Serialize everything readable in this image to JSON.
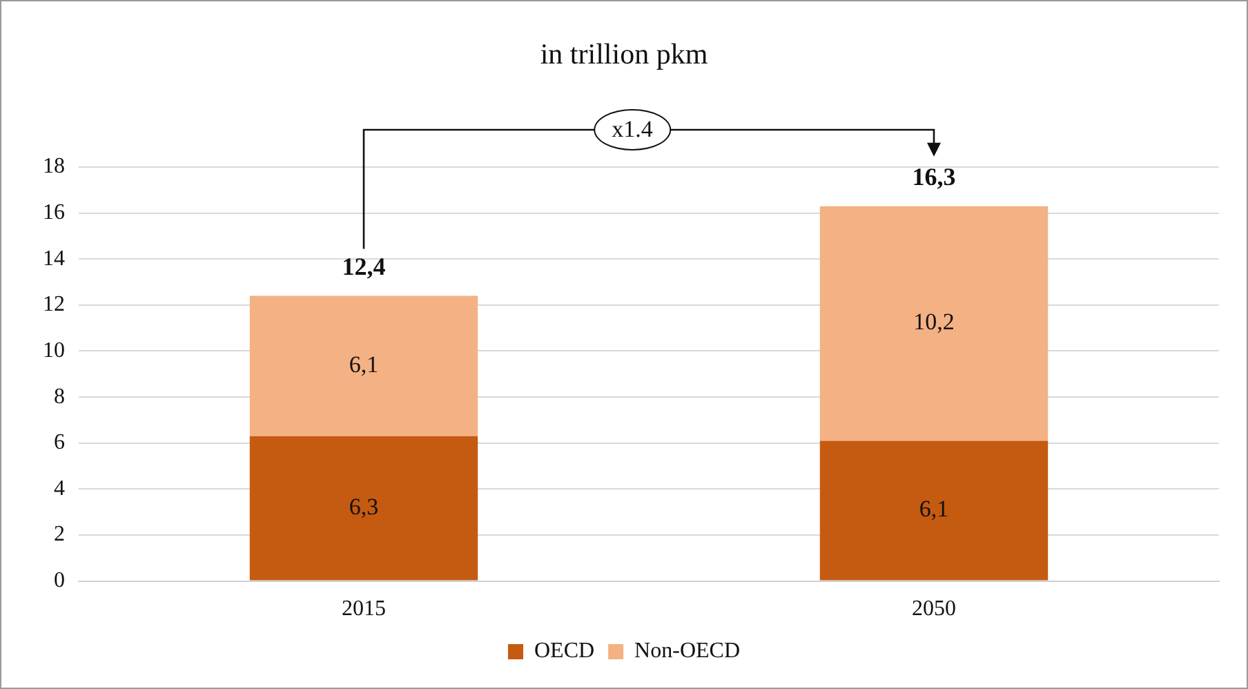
{
  "chart_data": {
    "type": "bar",
    "title": "in trillion pkm",
    "categories": [
      "2015",
      "2050"
    ],
    "stacked": true,
    "series": [
      {
        "name": "OECD",
        "color": "#c55a11",
        "values": [
          6.3,
          6.1
        ],
        "value_labels": [
          "6,3",
          "6,1"
        ]
      },
      {
        "name": "Non-OECD",
        "color": "#f4b183",
        "values": [
          6.1,
          10.2
        ],
        "value_labels": [
          "6,1",
          "10,2"
        ]
      }
    ],
    "totals": [
      "12,4",
      "16,3"
    ],
    "annotations": [
      "x1.4"
    ],
    "ylim": [
      0,
      18
    ],
    "yticks": [
      0,
      2,
      4,
      6,
      8,
      10,
      12,
      14,
      16,
      18
    ],
    "grid": "y",
    "legend": "bottom"
  }
}
